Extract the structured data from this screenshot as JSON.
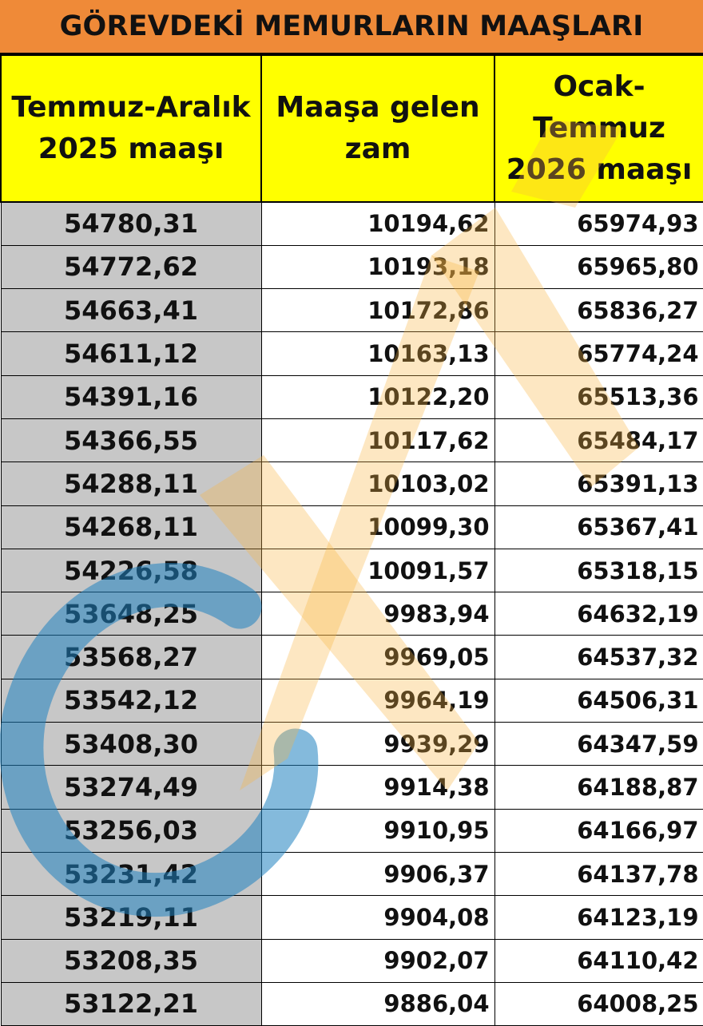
{
  "title": "GÖREVDEKİ MEMURLARIN MAAŞLARI",
  "columns": [
    {
      "line1": "Temmuz-Aralık",
      "line2": "2025 maaşı",
      "line3": ""
    },
    {
      "line1": "Maaşa gelen",
      "line2": "zam",
      "line3": ""
    },
    {
      "line1": "Ocak-",
      "line2": "Temmuz",
      "line3": "2026 maaşı"
    }
  ],
  "rows": [
    [
      "54780,31",
      "10194,62",
      "65974,93"
    ],
    [
      "54772,62",
      "10193,18",
      "65965,80"
    ],
    [
      "54663,41",
      "10172,86",
      "65836,27"
    ],
    [
      "54611,12",
      "10163,13",
      "65774,24"
    ],
    [
      "54391,16",
      "10122,20",
      "65513,36"
    ],
    [
      "54366,55",
      "10117,62",
      "65484,17"
    ],
    [
      "54288,11",
      "10103,02",
      "65391,13"
    ],
    [
      "54268,11",
      "10099,30",
      "65367,41"
    ],
    [
      "54226,58",
      "10091,57",
      "65318,15"
    ],
    [
      "53648,25",
      "9983,94",
      "64632,19"
    ],
    [
      "53568,27",
      "9969,05",
      "64537,32"
    ],
    [
      "53542,12",
      "9964,19",
      "64506,31"
    ],
    [
      "53408,30",
      "9939,29",
      "64347,59"
    ],
    [
      "53274,49",
      "9914,38",
      "64188,87"
    ],
    [
      "53256,03",
      "9910,95",
      "64166,97"
    ],
    [
      "53231,42",
      "9906,37",
      "64137,78"
    ],
    [
      "53219,11",
      "9904,08",
      "64123,19"
    ],
    [
      "53208,35",
      "9902,07",
      "64110,42"
    ],
    [
      "53122,21",
      "9886,04",
      "64008,25"
    ]
  ],
  "colors": {
    "title_bg": "#ef8a38",
    "header_bg": "#ffff00",
    "first_col_bg": "#c7c7c7",
    "watermark_orange": "#f9b440",
    "watermark_blue": "#1f82c0"
  },
  "watermark": {
    "icon": "news-logo-watermark-icon"
  }
}
